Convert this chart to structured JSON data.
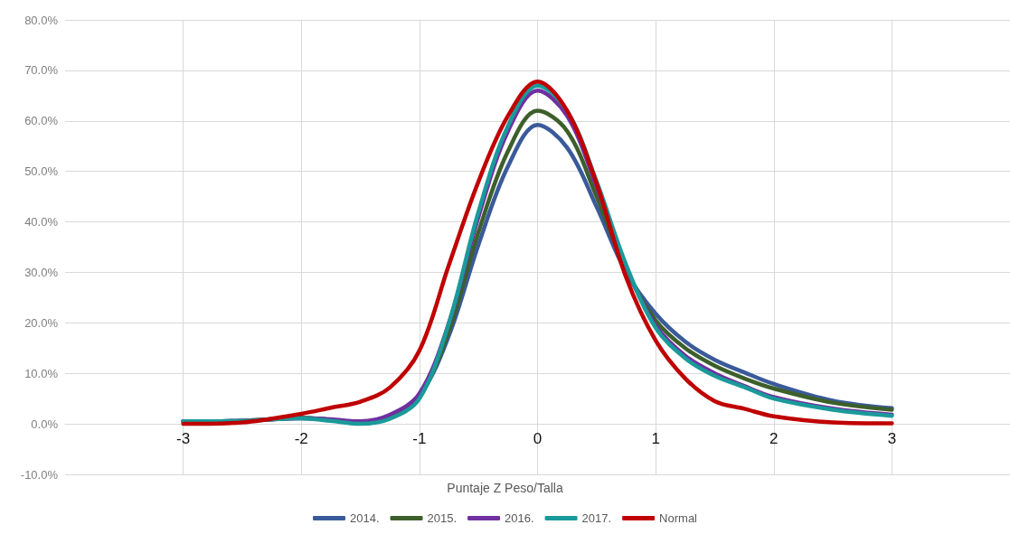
{
  "chart_data": {
    "type": "line",
    "xlabel": "Puntaje Z Peso/Talla",
    "x": [
      -3,
      -2.5,
      -2,
      -1.75,
      -1.5,
      -1.25,
      -1,
      -0.75,
      -0.5,
      -0.25,
      0,
      0.25,
      0.5,
      0.75,
      1,
      1.25,
      1.5,
      1.75,
      2,
      2.5,
      3
    ],
    "series": [
      {
        "name": "2014.",
        "color": "#3a5a9a",
        "values": [
          0.5,
          0.6,
          1.2,
          0.8,
          0.3,
          1.5,
          5.5,
          17.5,
          35.5,
          51,
          59.2,
          54.7,
          43,
          30,
          21.8,
          16.3,
          12.7,
          10.2,
          7.9,
          4.6,
          3.1
        ]
      },
      {
        "name": "2015.",
        "color": "#3d5f2b",
        "values": [
          0.5,
          0.6,
          1.2,
          0.8,
          0.3,
          1.5,
          5.5,
          18.5,
          38,
          54,
          62,
          58,
          45,
          30.5,
          20.5,
          15,
          11.5,
          9,
          7,
          4.2,
          2.8
        ]
      },
      {
        "name": "2016.",
        "color": "#7030a0",
        "values": [
          0.5,
          0.6,
          1.1,
          0.9,
          0.5,
          1.8,
          6,
          20,
          41,
          58,
          66,
          61,
          47,
          31,
          19.5,
          13.5,
          10,
          7.5,
          5.3,
          3,
          1.8
        ]
      },
      {
        "name": "2017.",
        "color": "#1a9a9a",
        "values": [
          0.5,
          0.6,
          1.1,
          0.6,
          0,
          1,
          5,
          20,
          42,
          59,
          67,
          62,
          48,
          31.5,
          19,
          13,
          9.5,
          7.3,
          5,
          2.8,
          1.6
        ]
      },
      {
        "name": "Normal",
        "color": "#c00000",
        "values": [
          0,
          0.3,
          2,
          3.2,
          4.4,
          7.2,
          14.5,
          31.5,
          48,
          61,
          67.8,
          62,
          47.6,
          29,
          16.5,
          9,
          4.5,
          3,
          1.5,
          0.3,
          0.1
        ]
      }
    ],
    "xlim": [
      -4,
      4
    ],
    "xticks": [
      -3,
      -2,
      -1,
      0,
      1,
      2,
      3
    ],
    "ylim": [
      -10,
      80
    ],
    "yticks": [
      {
        "value": -10,
        "label": "-10.0%"
      },
      {
        "value": 0,
        "label": "0.0%"
      },
      {
        "value": 10,
        "label": "10.0%"
      },
      {
        "value": 20,
        "label": "20.0%"
      },
      {
        "value": 30,
        "label": "30.0%"
      },
      {
        "value": 40,
        "label": "40.0%"
      },
      {
        "value": 50,
        "label": "50.0%"
      },
      {
        "value": 60,
        "label": "60.0%"
      },
      {
        "value": 70,
        "label": "70.0%"
      },
      {
        "value": 80,
        "label": "80.0%"
      }
    ],
    "grid": true,
    "legend": "bottom",
    "marker": "none",
    "line_style": "solid"
  }
}
